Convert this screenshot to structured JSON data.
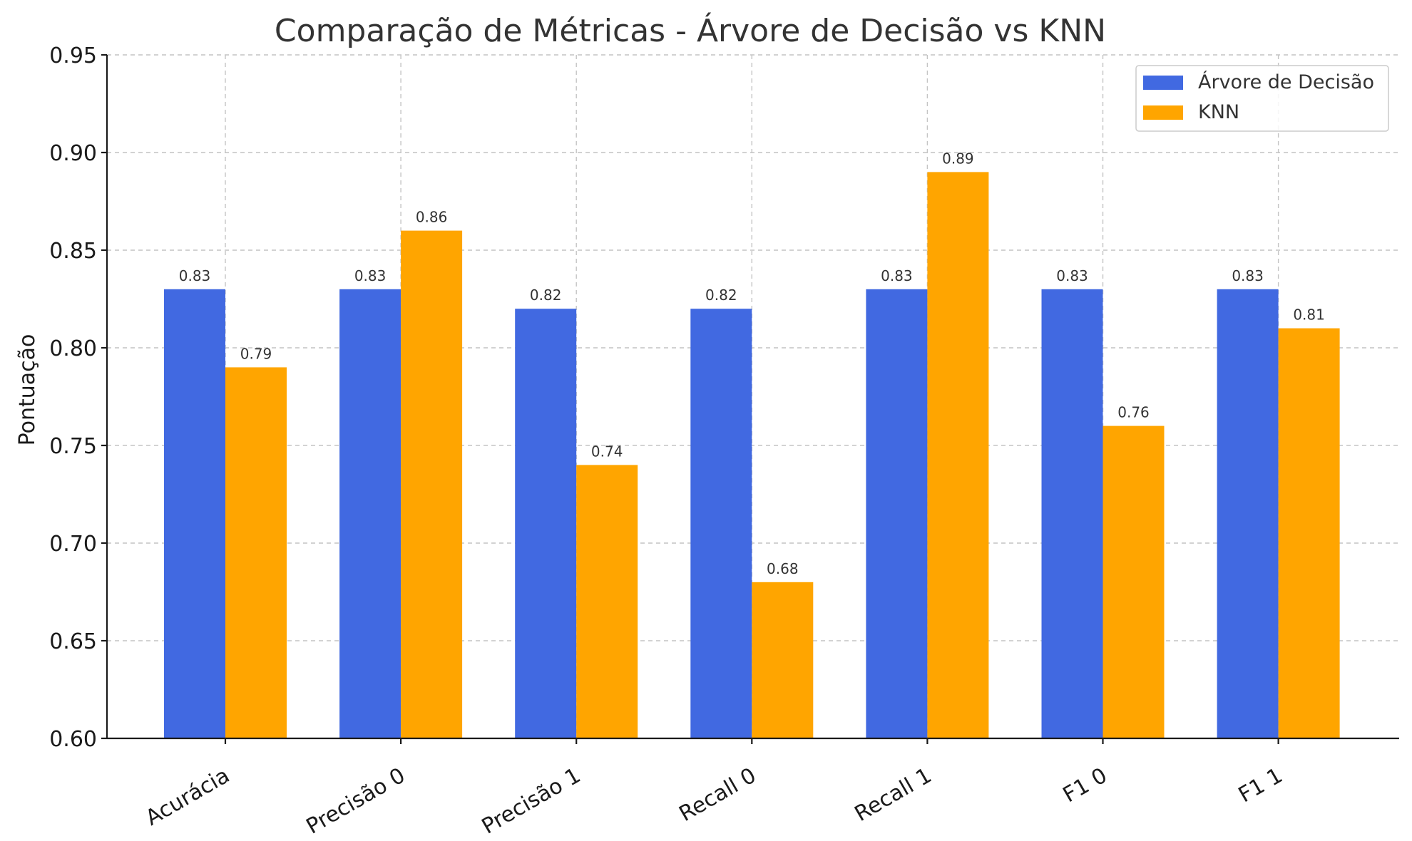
{
  "chart_data": {
    "type": "bar",
    "title": "Comparação de Métricas - Árvore de Decisão vs KNN",
    "xlabel": "",
    "ylabel": "Pontuação",
    "ylim": [
      0.6,
      0.95
    ],
    "yticks": [
      "0.60",
      "0.65",
      "0.70",
      "0.75",
      "0.80",
      "0.85",
      "0.90",
      "0.95"
    ],
    "categories": [
      "Acurácia",
      "Precisão 0",
      "Precisão 1",
      "Recall 0",
      "Recall 1",
      "F1 0",
      "F1 1"
    ],
    "series": [
      {
        "name": "Árvore de Decisão",
        "color": "#4169E1",
        "values": [
          0.83,
          0.83,
          0.82,
          0.82,
          0.83,
          0.83,
          0.83
        ],
        "labels": [
          "0.83",
          "0.83",
          "0.82",
          "0.82",
          "0.83",
          "0.83",
          "0.83"
        ]
      },
      {
        "name": "KNN",
        "color": "#FFA500",
        "values": [
          0.79,
          0.86,
          0.74,
          0.68,
          0.89,
          0.76,
          0.81
        ],
        "labels": [
          "0.79",
          "0.86",
          "0.74",
          "0.68",
          "0.89",
          "0.76",
          "0.81"
        ]
      }
    ],
    "grid": true,
    "legend_position": "top-right"
  }
}
